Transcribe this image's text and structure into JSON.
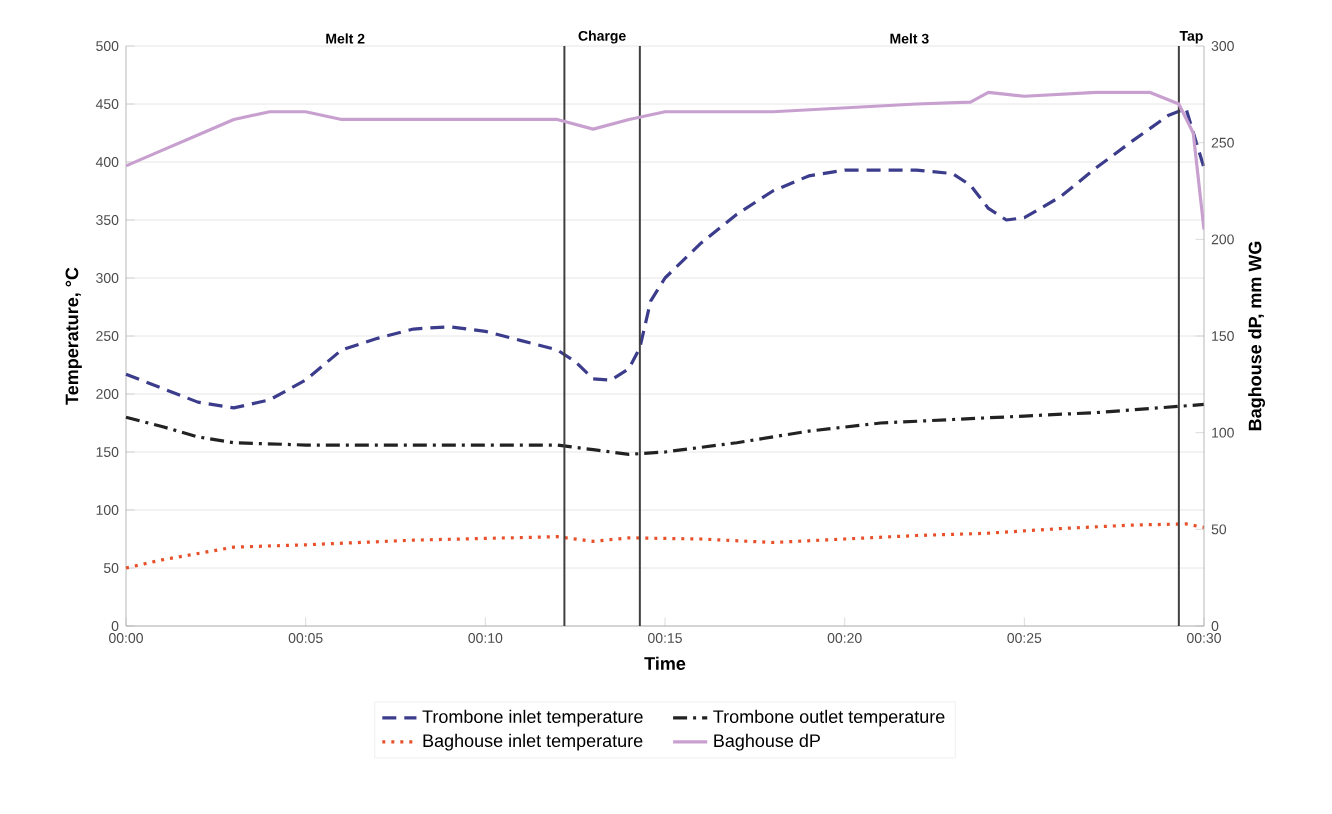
{
  "chart_data": {
    "type": "line",
    "xlabel": "Time",
    "ylabel": "Temperature, °C",
    "y2label": "Baghouse dP, mm WG",
    "xlim": [
      0,
      30
    ],
    "xticks": [
      {
        "value": 0,
        "label": "00:00"
      },
      {
        "value": 5,
        "label": "00:05"
      },
      {
        "value": 10,
        "label": "00:10"
      },
      {
        "value": 15,
        "label": "00:15"
      },
      {
        "value": 20,
        "label": "00:20"
      },
      {
        "value": 25,
        "label": "00:25"
      },
      {
        "value": 30,
        "label": "00:30"
      }
    ],
    "ylim": [
      0,
      500
    ],
    "yticks": [
      0,
      50,
      100,
      150,
      200,
      250,
      300,
      350,
      400,
      450,
      500
    ],
    "y2lim": [
      0,
      300
    ],
    "y2ticks": [
      0,
      50,
      100,
      150,
      200,
      250,
      300
    ],
    "grid": "y",
    "legend": "bottom",
    "marker": "none",
    "ref_lines": [
      {
        "axis": "x",
        "value": 12.2
      },
      {
        "axis": "x",
        "value": 14.3
      },
      {
        "axis": "x",
        "value": 29.3
      }
    ],
    "annotations": [
      "Melt 2",
      "Charge",
      "Melt 3",
      "Tap"
    ],
    "series": [
      {
        "name": "Trombone inlet temperature",
        "color": "#3c3c8c",
        "line_style": "dashed",
        "x": [
          0,
          1,
          2,
          3,
          4,
          5,
          6,
          7,
          8,
          9,
          10,
          11,
          12,
          12.5,
          13,
          13.5,
          14,
          14.3,
          14.6,
          15,
          16,
          17,
          18,
          19,
          20,
          21,
          22,
          23,
          23.5,
          24,
          24.5,
          25,
          26,
          27,
          28,
          29,
          29.5,
          30
        ],
        "values": [
          217,
          205,
          193,
          188,
          195,
          212,
          238,
          248,
          256,
          258,
          254,
          246,
          238,
          228,
          213,
          212,
          222,
          240,
          280,
          300,
          330,
          355,
          375,
          388,
          393,
          393,
          393,
          390,
          380,
          360,
          350,
          352,
          370,
          395,
          418,
          440,
          446,
          395
        ]
      },
      {
        "name": "Trombone outlet temperature",
        "color": "#222222",
        "line_style": "dashdot",
        "x": [
          0,
          1,
          2,
          3,
          5,
          10,
          12,
          13,
          14,
          15,
          17,
          19,
          21,
          23,
          25,
          27,
          30
        ],
        "values": [
          180,
          172,
          163,
          158,
          156,
          156,
          156,
          152,
          148,
          150,
          158,
          168,
          175,
          178,
          181,
          184,
          191
        ]
      },
      {
        "name": "Baghouse inlet temperature",
        "color": "#e8502a",
        "line_style": "dotted",
        "x": [
          0,
          1,
          3,
          5,
          8,
          12,
          13,
          14,
          16,
          18,
          20,
          22,
          24,
          26,
          28,
          29.5,
          30
        ],
        "values": [
          50,
          57,
          68,
          70,
          74,
          77,
          73,
          76,
          75,
          72,
          75,
          78,
          80,
          84,
          87,
          88,
          85
        ]
      },
      {
        "name": "Baghouse dP",
        "color": "#c8a0d0",
        "line_style": "solid",
        "axis": "y2",
        "x": [
          0,
          1,
          2,
          3,
          4,
          5,
          6,
          8,
          12,
          13,
          14,
          15,
          18,
          22,
          23.5,
          24,
          25,
          27,
          28.5,
          29.3,
          29.7,
          30
        ],
        "values": [
          238,
          246,
          254,
          262,
          266,
          266,
          262,
          262,
          262,
          257,
          262,
          266,
          266,
          270,
          271,
          276,
          274,
          276,
          276,
          270,
          255,
          205
        ]
      }
    ]
  }
}
